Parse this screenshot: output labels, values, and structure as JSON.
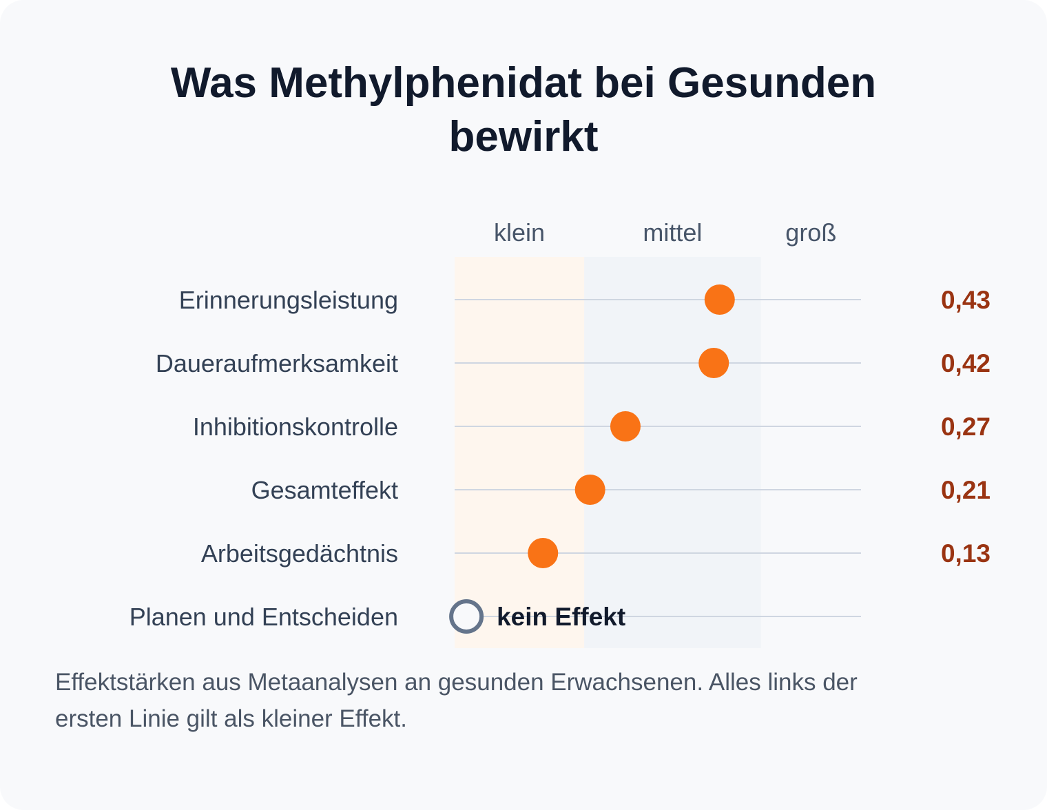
{
  "title": "Was Methylphenidat bei Gesunden bewirkt",
  "note": "Effektstärken aus Metaanalysen an gesunden Erwachsenen. Alles links der ersten Linie gilt als kleiner Effekt.",
  "colors": {
    "background": "#f8f9fb",
    "title": "#111a2c",
    "band_small": "#fef6ee",
    "band_medium": "#f1f4f8",
    "row_line": "#cfd6e1",
    "dot": "#f97316",
    "value_text": "#9a3412",
    "label_text": "#334155",
    "band_label_text": "#475569",
    "null_marker": "#64748b",
    "null_text": "#111a2c"
  },
  "chart_data": {
    "type": "dot",
    "xlim": [
      -0.02,
      0.67
    ],
    "bands": [
      {
        "label": "klein",
        "from": -0.02,
        "to": 0.2
      },
      {
        "label": "mittel",
        "from": 0.2,
        "to": 0.5
      },
      {
        "label": "groß",
        "from": 0.5,
        "to": 0.67
      }
    ],
    "categories": [
      "Erinnerungsleistung",
      "Daueraufmerksamkeit",
      "Inhibitionskontrolle",
      "Gesamteffekt",
      "Arbeitsgedächtnis",
      "Planen und Entscheiden"
    ],
    "values": [
      0.43,
      0.42,
      0.27,
      0.21,
      0.13,
      0
    ],
    "value_labels": [
      "0,43",
      "0,42",
      "0,27",
      "0,21",
      "0,13",
      ""
    ],
    "null_label": "kein Effekt"
  }
}
